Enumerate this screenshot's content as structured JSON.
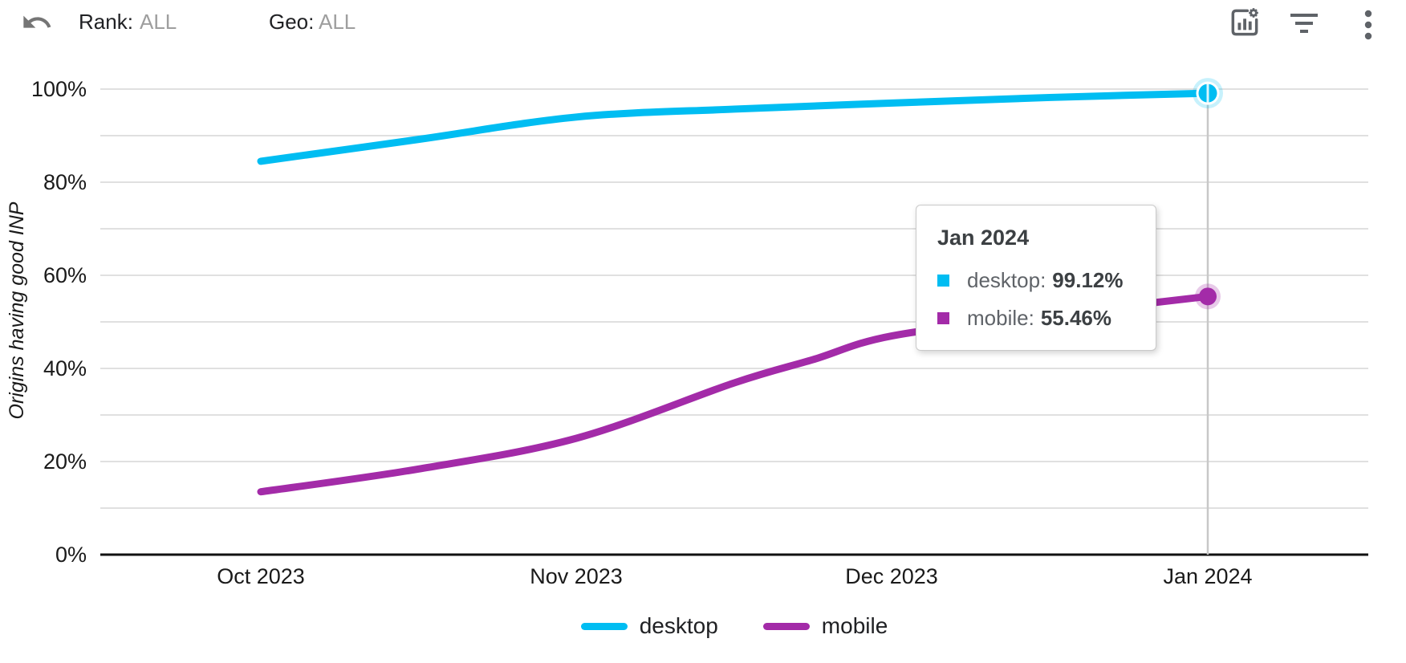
{
  "header": {
    "rank_label": "Rank:",
    "rank_value": "ALL",
    "geo_label": "Geo:",
    "geo_value": "ALL"
  },
  "chart": {
    "y_axis_title": "Origins having good INP",
    "y_ticks": [
      "100%",
      "80%",
      "60%",
      "40%",
      "20%",
      "0%"
    ],
    "x_ticks": [
      "Oct 2023",
      "Nov 2023",
      "Dec 2023",
      "Jan 2024"
    ]
  },
  "tooltip": {
    "title": "Jan 2024",
    "rows": [
      {
        "label": "desktop:",
        "value": "99.12%",
        "color": "#00BDF2"
      },
      {
        "label": "mobile:",
        "value": "55.46%",
        "color": "#A32BA8"
      }
    ]
  },
  "legend": [
    {
      "label": "desktop",
      "color": "#00BDF2"
    },
    {
      "label": "mobile",
      "color": "#A32BA8"
    }
  ],
  "colors": {
    "desktop": "#00BDF2",
    "mobile": "#A32BA8",
    "gridline": "#e0e0e0",
    "axis": "#111111",
    "crosshair": "#c8c8c8",
    "icon": "#5f6368"
  },
  "chart_data": {
    "type": "line",
    "x": [
      "Oct 2023",
      "Nov 2023",
      "Dec 2023",
      "Jan 2024"
    ],
    "series": [
      {
        "name": "desktop",
        "color": "#00BDF2",
        "values": [
          84.5,
          94,
          97,
          99.12
        ],
        "points": [
          [
            0,
            84.5
          ],
          [
            0.5,
            89.2
          ],
          [
            1,
            94
          ],
          [
            1.5,
            95.7
          ],
          [
            2,
            97
          ],
          [
            2.5,
            98.2
          ],
          [
            3,
            99.12
          ]
        ]
      },
      {
        "name": "mobile",
        "color": "#A32BA8",
        "values": [
          13.5,
          25,
          47,
          55.46
        ],
        "points": [
          [
            0,
            13.5
          ],
          [
            0.5,
            18.4
          ],
          [
            1,
            25
          ],
          [
            1.5,
            36.9
          ],
          [
            1.75,
            41.9
          ],
          [
            2,
            47
          ],
          [
            2.5,
            51.5
          ],
          [
            3,
            55.46
          ]
        ]
      }
    ],
    "title": "",
    "xlabel": "",
    "ylabel": "Origins having good INP",
    "ylim": [
      0,
      100
    ],
    "grid": "horizontal lines every 10%",
    "legend_position": "bottom",
    "highlight": {
      "x": "Jan 2024",
      "desktop": 99.12,
      "mobile": 55.46
    }
  }
}
